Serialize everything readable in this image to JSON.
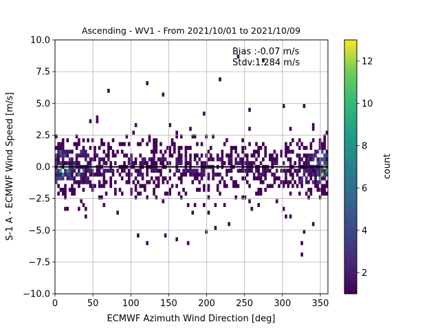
{
  "chart_data": {
    "type": "heatmap",
    "title": "Ascending - WV1 - From 2021/10/01 to 2021/10/09",
    "xlabel": "ECMWF Azimuth Wind Direction [deg]",
    "ylabel": "S-1 A - ECMWF Wind Speed [m/s]",
    "xlim": [
      0,
      360
    ],
    "ylim": [
      -10,
      10
    ],
    "xticks": [
      "0",
      "50",
      "100",
      "150",
      "200",
      "250",
      "300",
      "350"
    ],
    "yticks": [
      "−10.0",
      "−7.5",
      "−5.0",
      "−2.5",
      "0.0",
      "2.5",
      "5.0",
      "7.5",
      "10.0"
    ],
    "grid": true,
    "annotations": [
      "Bias :-0.07 m/s",
      "Stdv:1.284 m/s"
    ],
    "zero_line": 0,
    "colorbar": {
      "label": "count",
      "colormap": "viridis",
      "range": [
        1,
        13
      ],
      "ticks": [
        "2",
        "4",
        "6",
        "8",
        "10",
        "12"
      ]
    },
    "bin_size": {
      "x": 3,
      "y": 0.3
    },
    "hot_cells": [
      {
        "x": 6,
        "y": 0,
        "count": 12
      },
      {
        "x": 6,
        "y": -0.3,
        "count": 9
      },
      {
        "x": 9,
        "y": -0.6,
        "count": 8
      },
      {
        "x": 15,
        "y": -0.3,
        "count": 9
      },
      {
        "x": 24,
        "y": 0,
        "count": 8
      },
      {
        "x": 30,
        "y": -0.6,
        "count": 7
      },
      {
        "x": 36,
        "y": -0.3,
        "count": 7
      },
      {
        "x": 45,
        "y": 0,
        "count": 6
      },
      {
        "x": 351,
        "y": -0.6,
        "count": 12
      },
      {
        "x": 354,
        "y": 0,
        "count": 13
      },
      {
        "x": 357,
        "y": -0.3,
        "count": 9
      },
      {
        "x": 348,
        "y": -0.9,
        "count": 7
      },
      {
        "x": 345,
        "y": 0.3,
        "count": 6
      }
    ],
    "outliers": [
      {
        "x": 69,
        "y": 6.0
      },
      {
        "x": 120,
        "y": 6.6
      },
      {
        "x": 141,
        "y": 5.7
      },
      {
        "x": 216,
        "y": 6.8
      },
      {
        "x": 240,
        "y": 8.6
      },
      {
        "x": 273,
        "y": 8.4
      },
      {
        "x": 195,
        "y": 4.2
      },
      {
        "x": 255,
        "y": 4.5
      },
      {
        "x": 300,
        "y": 4.8
      },
      {
        "x": 327,
        "y": 4.9
      },
      {
        "x": 108,
        "y": -5.4
      },
      {
        "x": 120,
        "y": -5.9
      },
      {
        "x": 144,
        "y": -5.4
      },
      {
        "x": 159,
        "y": -5.7
      },
      {
        "x": 174,
        "y": -6.1
      },
      {
        "x": 198,
        "y": -5.2
      },
      {
        "x": 210,
        "y": -4.9
      },
      {
        "x": 228,
        "y": -4.6
      },
      {
        "x": 324,
        "y": -6.1
      },
      {
        "x": 324,
        "y": -6.8
      },
      {
        "x": 327,
        "y": -5.1
      },
      {
        "x": 339,
        "y": -4.4
      },
      {
        "x": 39,
        "y": -3.4
      },
      {
        "x": 309,
        "y": -3.8
      }
    ]
  }
}
